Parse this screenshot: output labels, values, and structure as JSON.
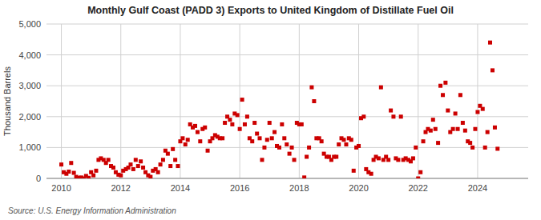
{
  "chart_data": {
    "type": "scatter",
    "title": "Monthly Gulf Coast (PADD 3) Exports to United Kingdom of Distillate Fuel Oil",
    "y_label": "Thousand Barrels",
    "annotations": [
      "Source: U.S. Energy Information Administration"
    ],
    "color": "#cc0000",
    "marker": "square",
    "grid": true,
    "xlim": [
      2009.5,
      2025.7
    ],
    "xticks": [
      2010,
      2012,
      2014,
      2016,
      2018,
      2020,
      2022,
      2024
    ],
    "ylim": [
      0,
      5000
    ],
    "yticks": [
      0,
      {
        "value": 1000,
        "label": "1,000"
      },
      {
        "value": 2000,
        "label": "2,000"
      },
      {
        "value": 3000,
        "label": "3,000"
      },
      {
        "value": 4000,
        "label": "4,000"
      },
      {
        "value": 5000,
        "label": "5,000"
      }
    ],
    "x": [
      2010.0,
      2010.08,
      2010.17,
      2010.25,
      2010.33,
      2010.42,
      2010.5,
      2010.58,
      2010.67,
      2010.75,
      2010.83,
      2010.92,
      2011.0,
      2011.08,
      2011.17,
      2011.25,
      2011.33,
      2011.42,
      2011.5,
      2011.58,
      2011.67,
      2011.75,
      2011.83,
      2011.92,
      2012.0,
      2012.08,
      2012.17,
      2012.25,
      2012.33,
      2012.42,
      2012.5,
      2012.58,
      2012.67,
      2012.75,
      2012.83,
      2012.92,
      2013.0,
      2013.08,
      2013.17,
      2013.25,
      2013.33,
      2013.42,
      2013.5,
      2013.58,
      2013.67,
      2013.75,
      2013.83,
      2013.92,
      2014.0,
      2014.08,
      2014.17,
      2014.25,
      2014.33,
      2014.42,
      2014.5,
      2014.58,
      2014.67,
      2014.75,
      2014.83,
      2014.92,
      2015.0,
      2015.08,
      2015.17,
      2015.25,
      2015.33,
      2015.42,
      2015.5,
      2015.58,
      2015.67,
      2015.75,
      2015.83,
      2015.92,
      2016.0,
      2016.08,
      2016.17,
      2016.25,
      2016.33,
      2016.42,
      2016.5,
      2016.58,
      2016.67,
      2016.75,
      2016.83,
      2016.92,
      2017.0,
      2017.08,
      2017.17,
      2017.25,
      2017.33,
      2017.42,
      2017.5,
      2017.58,
      2017.67,
      2017.75,
      2017.83,
      2017.92,
      2018.0,
      2018.08,
      2018.17,
      2018.25,
      2018.33,
      2018.42,
      2018.5,
      2018.58,
      2018.67,
      2018.75,
      2018.83,
      2018.92,
      2019.0,
      2019.08,
      2019.17,
      2019.25,
      2019.33,
      2019.42,
      2019.5,
      2019.58,
      2019.67,
      2019.75,
      2019.83,
      2019.92,
      2020.0,
      2020.08,
      2020.17,
      2020.25,
      2020.33,
      2020.42,
      2020.5,
      2020.58,
      2020.67,
      2020.75,
      2020.83,
      2020.92,
      2021.0,
      2021.08,
      2021.17,
      2021.25,
      2021.33,
      2021.42,
      2021.5,
      2021.58,
      2021.67,
      2021.75,
      2021.83,
      2021.92,
      2022.0,
      2022.08,
      2022.17,
      2022.25,
      2022.33,
      2022.42,
      2022.5,
      2022.58,
      2022.67,
      2022.75,
      2022.83,
      2022.92,
      2023.0,
      2023.08,
      2023.17,
      2023.25,
      2023.33,
      2023.42,
      2023.5,
      2023.58,
      2023.67,
      2023.75,
      2023.83,
      2023.92,
      2024.0,
      2024.08,
      2024.17,
      2024.25,
      2024.33,
      2024.42,
      2024.5,
      2024.58,
      2024.67
    ],
    "values": [
      450,
      200,
      150,
      220,
      500,
      180,
      50,
      20,
      30,
      0,
      80,
      20,
      200,
      100,
      250,
      600,
      650,
      600,
      500,
      600,
      400,
      350,
      200,
      120,
      100,
      250,
      300,
      350,
      450,
      300,
      600,
      400,
      550,
      350,
      200,
      100,
      50,
      250,
      300,
      200,
      450,
      600,
      900,
      800,
      400,
      950,
      600,
      400,
      1200,
      1300,
      1100,
      1250,
      1750,
      1650,
      1700,
      1500,
      1200,
      1600,
      1650,
      900,
      1200,
      1300,
      1400,
      1350,
      1300,
      1300,
      1800,
      2000,
      1900,
      1750,
      2100,
      2050,
      1600,
      2550,
      1750,
      2000,
      1300,
      1200,
      1800,
      1450,
      1300,
      600,
      1000,
      1250,
      1800,
      1300,
      1500,
      1050,
      1000,
      1750,
      1300,
      1100,
      800,
      1000,
      600,
      1800,
      1750,
      1750,
      30,
      700,
      1000,
      2950,
      2500,
      1300,
      1300,
      1200,
      800,
      700,
      700,
      600,
      700,
      700,
      1100,
      1300,
      1250,
      1100,
      1300,
      1250,
      250,
      1000,
      1050,
      1950,
      2000,
      300,
      200,
      150,
      600,
      700,
      650,
      2950,
      600,
      700,
      600,
      2200,
      2000,
      650,
      600,
      2000,
      600,
      650,
      600,
      550,
      650,
      1000,
      0,
      200,
      1200,
      1500,
      1600,
      1550,
      1900,
      1600,
      1150,
      3000,
      2700,
      3100,
      2200,
      1500,
      1600,
      2100,
      1600,
      2700,
      1800,
      1550,
      1200,
      1150,
      1000,
      1600,
      2150,
      2350,
      2250,
      1000,
      1500,
      4400,
      3500,
      1650,
      960
    ]
  }
}
